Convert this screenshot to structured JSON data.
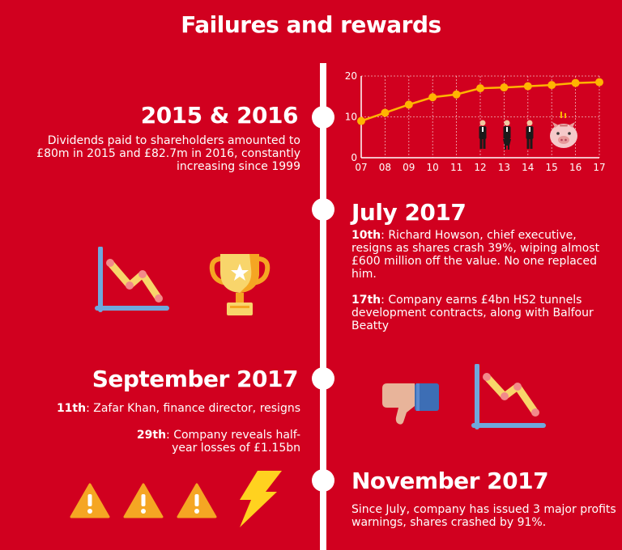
{
  "title": "Failures and rewards",
  "sections": [
    {
      "heading": "2015 & 2016",
      "text": "Dividends paid to shareholders amounted to £80m in 2015 and £82.7m in 2016, constantly increasing since 1999"
    },
    {
      "heading": "July 2017",
      "items": [
        {
          "day": "10th",
          "text": ": Richard Howson, chief executive, resigns as shares crash 39%, wiping almost £600 million off the value. No one replaced him."
        },
        {
          "day": "17th",
          "text": ": Company earns £4bn HS2 tunnels development contracts, along with Balfour Beatty"
        }
      ]
    },
    {
      "heading": "September 2017",
      "items": [
        {
          "day": "11th",
          "text": ": Zafar Khan, finance director, resigns"
        },
        {
          "day": "29th",
          "text": ": Company reveals half-year losses of £1.15bn"
        }
      ]
    },
    {
      "heading": "November 2017",
      "text": "Since July, company has issued 3 major profits warnings, shares crashed by 91%."
    }
  ],
  "colors": {
    "background": "#d1001f",
    "accent": "#ffb400",
    "white": "#ffffff"
  },
  "icons": [
    "declining-chart-icon",
    "trophy-icon",
    "thumbs-down-icon",
    "declining-chart-icon",
    "warning-icon",
    "warning-icon",
    "warning-icon",
    "lightning-icon",
    "businesspeople-icon",
    "piggy-bank-icon"
  ],
  "chart_data": {
    "type": "line",
    "x": [
      "07",
      "08",
      "09",
      "10",
      "11",
      "12",
      "13",
      "14",
      "15",
      "16",
      "17"
    ],
    "values": [
      9,
      11,
      13,
      14.8,
      15.5,
      17,
      17.2,
      17.5,
      17.8,
      18.3,
      18.5
    ],
    "yticks": [
      0,
      10,
      20
    ],
    "ylim": [
      0,
      20
    ],
    "grid": true
  }
}
